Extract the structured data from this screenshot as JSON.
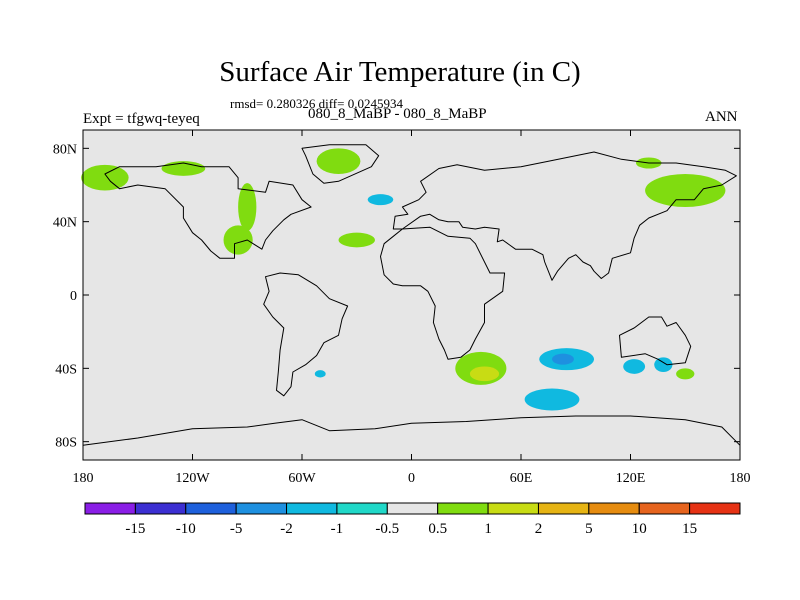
{
  "chart_data": {
    "type": "heatmap",
    "title": "Surface Air Temperature (in C)",
    "subtitle": "rmsd= 0.280326 diff= 0.0245934",
    "left_label": "Expt = tfgwq-teyeq",
    "center_label": "080_8_MaBP - 080_8_MaBP",
    "right_label": "ANN",
    "x_ticks": [
      {
        "value": -180,
        "label": "180"
      },
      {
        "value": -120,
        "label": "120W"
      },
      {
        "value": -60,
        "label": "60W"
      },
      {
        "value": 0,
        "label": "0"
      },
      {
        "value": 60,
        "label": "60E"
      },
      {
        "value": 120,
        "label": "120E"
      },
      {
        "value": 180,
        "label": "180"
      }
    ],
    "y_ticks": [
      {
        "value": 80,
        "label": "80N"
      },
      {
        "value": 40,
        "label": "40N"
      },
      {
        "value": 0,
        "label": "0"
      },
      {
        "value": -40,
        "label": "40S"
      },
      {
        "value": -80,
        "label": "80S"
      }
    ],
    "xlim": [
      -180,
      180
    ],
    "ylim": [
      -90,
      90
    ],
    "colorbar": {
      "colors": [
        "#8a1ee6",
        "#3c2fd2",
        "#1e60dc",
        "#1e90e0",
        "#10b9e0",
        "#20d8c8",
        "#e6e6e6",
        "#80dc10",
        "#c8dc14",
        "#e6b414",
        "#e68c10",
        "#e6641e",
        "#e63214"
      ],
      "labels": [
        "-15",
        "-10",
        "-5",
        "-2",
        "-1",
        "-0.5",
        "0.5",
        "1",
        "2",
        "5",
        "10",
        "15"
      ]
    },
    "anomalies": [
      {
        "name": "n-america-west",
        "lon": -168,
        "lat": 64,
        "rx": 13,
        "ry": 7,
        "level": "1"
      },
      {
        "name": "n-america-ne",
        "lon": -125,
        "lat": 69,
        "rx": 12,
        "ry": 4,
        "level": "1"
      },
      {
        "name": "n-america-nw-lobe",
        "lon": -90,
        "lat": 48,
        "rx": 5,
        "ry": 13,
        "level": "1"
      },
      {
        "name": "n-pacific-arc",
        "lon": -95,
        "lat": 30,
        "rx": 8,
        "ry": 8,
        "level": "1"
      },
      {
        "name": "greenland",
        "lon": -40,
        "lat": 73,
        "rx": 12,
        "ry": 7,
        "level": "1"
      },
      {
        "name": "n-atlantic",
        "lon": -30,
        "lat": 30,
        "rx": 10,
        "ry": 4,
        "level": "1"
      },
      {
        "name": "e-siberia",
        "lon": 150,
        "lat": 57,
        "rx": 22,
        "ry": 9,
        "level": "1"
      },
      {
        "name": "n-siberia",
        "lon": 130,
        "lat": 72,
        "rx": 7,
        "ry": 3,
        "level": "1"
      },
      {
        "name": "s-indian-ocean",
        "lon": 38,
        "lat": -40,
        "rx": 14,
        "ry": 9,
        "level": "1"
      },
      {
        "name": "s-indian-ocean-core",
        "lon": 40,
        "lat": -43,
        "rx": 8,
        "ry": 4,
        "level": "2"
      },
      {
        "name": "s-pacific-east",
        "lon": 150,
        "lat": -43,
        "rx": 5,
        "ry": 3,
        "level": "1"
      },
      {
        "name": "s-indian-cold",
        "lon": 85,
        "lat": -35,
        "rx": 15,
        "ry": 6,
        "level": "-1"
      },
      {
        "name": "s-indian-cold-core",
        "lon": 83,
        "lat": -35,
        "rx": 6,
        "ry": 3,
        "level": "-2"
      },
      {
        "name": "s-ocean-cold",
        "lon": 77,
        "lat": -57,
        "rx": 15,
        "ry": 6,
        "level": "-1"
      },
      {
        "name": "australia-cold",
        "lon": 122,
        "lat": -39,
        "rx": 6,
        "ry": 4,
        "level": "-1"
      },
      {
        "name": "pacific-cold",
        "lon": 138,
        "lat": -38,
        "rx": 5,
        "ry": 4,
        "level": "-1"
      },
      {
        "name": "tibet-cold",
        "lon": -17,
        "lat": 52,
        "rx": 7,
        "ry": 3,
        "level": "-1"
      },
      {
        "name": "s-america-cold",
        "lon": -50,
        "lat": -43,
        "rx": 3,
        "ry": 2,
        "level": "-1"
      }
    ]
  }
}
